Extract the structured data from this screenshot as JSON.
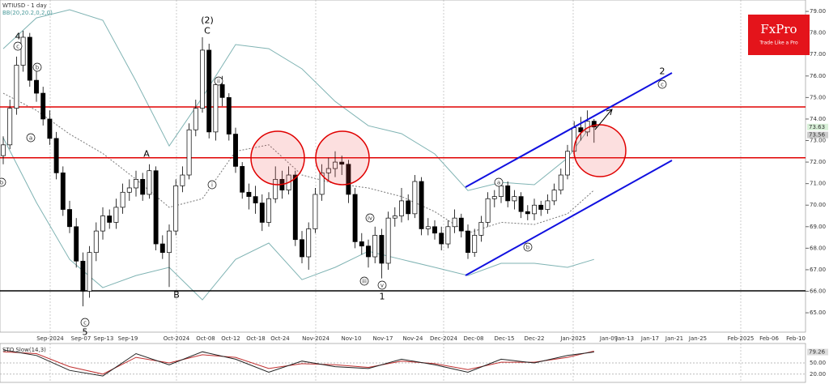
{
  "header": {
    "title": "WTIUSD - 1 day",
    "indicator": "BB(20,20.2,0,2,0)"
  },
  "logo": {
    "name": "FxPro",
    "tagline": "Trade Like a Pro"
  },
  "chart_data": {
    "type": "candlestick",
    "ohlc": [
      [
        72.3,
        73.2,
        71.9,
        72.8
      ],
      [
        72.8,
        74.9,
        72.6,
        74.5
      ],
      [
        74.5,
        76.9,
        74.2,
        76.5
      ],
      [
        76.5,
        78.1,
        76.2,
        77.8
      ],
      [
        77.8,
        78.0,
        75.5,
        75.8
      ],
      [
        75.8,
        76.6,
        74.8,
        75.2
      ],
      [
        75.2,
        75.5,
        73.7,
        74.0
      ],
      [
        74.0,
        74.4,
        72.8,
        73.1
      ],
      [
        73.1,
        73.4,
        71.2,
        71.5
      ],
      [
        71.5,
        71.8,
        69.5,
        69.8
      ],
      [
        69.8,
        70.2,
        68.7,
        69.0
      ],
      [
        69.0,
        69.4,
        67.1,
        67.4
      ],
      [
        67.4,
        67.8,
        65.3,
        66.0
      ],
      [
        66.0,
        68.1,
        65.7,
        67.8
      ],
      [
        67.8,
        69.2,
        67.4,
        68.8
      ],
      [
        68.8,
        69.9,
        68.4,
        69.5
      ],
      [
        69.5,
        69.8,
        68.9,
        69.2
      ],
      [
        69.2,
        70.3,
        68.9,
        69.9
      ],
      [
        69.9,
        71.0,
        69.6,
        70.6
      ],
      [
        70.6,
        71.2,
        70.2,
        70.8
      ],
      [
        70.8,
        71.6,
        70.4,
        71.2
      ],
      [
        71.2,
        71.5,
        70.2,
        70.5
      ],
      [
        70.5,
        71.9,
        70.3,
        71.6
      ],
      [
        71.6,
        71.8,
        67.9,
        68.2
      ],
      [
        68.2,
        68.6,
        67.5,
        67.8
      ],
      [
        67.8,
        69.1,
        66.2,
        68.8
      ],
      [
        68.8,
        71.2,
        68.6,
        70.9
      ],
      [
        70.9,
        71.8,
        70.6,
        71.4
      ],
      [
        71.4,
        73.8,
        71.2,
        73.5
      ],
      [
        73.5,
        74.9,
        73.2,
        74.5
      ],
      [
        74.5,
        77.8,
        74.3,
        77.2
      ],
      [
        77.2,
        77.5,
        73.1,
        73.4
      ],
      [
        73.4,
        75.9,
        73.0,
        75.6
      ],
      [
        75.6,
        76.0,
        74.6,
        75.0
      ],
      [
        75.0,
        75.2,
        73.0,
        73.3
      ],
      [
        73.3,
        73.6,
        71.5,
        71.8
      ],
      [
        71.8,
        72.0,
        70.3,
        70.6
      ],
      [
        70.6,
        71.0,
        69.8,
        70.4
      ],
      [
        70.4,
        70.9,
        69.6,
        70.1
      ],
      [
        70.1,
        70.5,
        68.8,
        69.2
      ],
      [
        69.2,
        70.6,
        69.0,
        70.3
      ],
      [
        70.3,
        71.8,
        70.1,
        71.2
      ],
      [
        71.2,
        71.6,
        70.3,
        70.7
      ],
      [
        70.7,
        71.8,
        70.5,
        71.4
      ],
      [
        71.4,
        71.6,
        68.1,
        68.4
      ],
      [
        68.4,
        68.8,
        67.3,
        67.6
      ],
      [
        67.6,
        69.2,
        67.0,
        68.9
      ],
      [
        68.9,
        70.8,
        68.7,
        70.5
      ],
      [
        70.5,
        71.9,
        70.2,
        71.5
      ],
      [
        71.5,
        72.2,
        71.1,
        71.7
      ],
      [
        71.7,
        72.5,
        71.3,
        72.0
      ],
      [
        72.0,
        72.3,
        71.4,
        71.9
      ],
      [
        71.9,
        72.1,
        70.1,
        70.5
      ],
      [
        70.5,
        70.8,
        68.0,
        68.3
      ],
      [
        68.3,
        68.7,
        67.7,
        68.1
      ],
      [
        68.1,
        68.4,
        67.1,
        67.6
      ],
      [
        67.6,
        69.0,
        67.3,
        68.6
      ],
      [
        68.6,
        68.9,
        66.6,
        67.3
      ],
      [
        67.3,
        69.7,
        67.0,
        69.4
      ],
      [
        69.4,
        69.9,
        69.0,
        69.5
      ],
      [
        69.5,
        70.8,
        69.2,
        70.2
      ],
      [
        70.2,
        70.5,
        69.3,
        69.6
      ],
      [
        69.6,
        71.4,
        69.4,
        71.1
      ],
      [
        71.1,
        71.3,
        68.6,
        68.9
      ],
      [
        68.9,
        69.4,
        68.6,
        69.0
      ],
      [
        69.0,
        69.3,
        68.4,
        68.7
      ],
      [
        68.7,
        69.0,
        67.9,
        68.2
      ],
      [
        68.2,
        69.3,
        68.0,
        69.0
      ],
      [
        69.0,
        69.8,
        68.7,
        69.4
      ],
      [
        69.4,
        69.6,
        68.5,
        68.8
      ],
      [
        68.8,
        69.1,
        67.5,
        67.8
      ],
      [
        67.8,
        68.9,
        67.6,
        68.6
      ],
      [
        68.6,
        69.5,
        68.3,
        69.2
      ],
      [
        69.2,
        70.6,
        69.0,
        70.3
      ],
      [
        70.3,
        70.7,
        69.9,
        70.4
      ],
      [
        70.4,
        71.2,
        70.1,
        70.9
      ],
      [
        70.9,
        71.1,
        69.9,
        70.2
      ],
      [
        70.2,
        70.7,
        69.8,
        70.4
      ],
      [
        70.4,
        70.6,
        69.4,
        69.7
      ],
      [
        69.7,
        70.0,
        69.3,
        69.6
      ],
      [
        69.6,
        70.3,
        69.3,
        70.0
      ],
      [
        70.0,
        70.2,
        69.5,
        69.8
      ],
      [
        69.8,
        70.5,
        69.6,
        70.2
      ],
      [
        70.2,
        71.0,
        70.0,
        70.7
      ],
      [
        70.7,
        71.7,
        70.5,
        71.4
      ],
      [
        71.4,
        72.8,
        71.2,
        72.5
      ],
      [
        72.5,
        73.9,
        72.3,
        73.6
      ],
      [
        73.6,
        74.1,
        73.0,
        73.4
      ],
      [
        73.4,
        74.4,
        73.2,
        73.9
      ],
      [
        73.9,
        74.0,
        72.9,
        73.63
      ]
    ],
    "ylim": [
      64.1,
      79.53
    ],
    "yticks": [
      {
        "value": 65,
        "label": "65.00"
      },
      {
        "value": 66,
        "label": "66.00"
      },
      {
        "value": 67,
        "label": "67.00"
      },
      {
        "value": 68,
        "label": "68.00"
      },
      {
        "value": 69,
        "label": "69.00"
      },
      {
        "value": 70,
        "label": "70.00"
      },
      {
        "value": 71,
        "label": "71.00"
      },
      {
        "value": 72,
        "label": "72.00"
      },
      {
        "value": 73,
        "label": "73.00"
      },
      {
        "value": 74,
        "label": "74.00"
      },
      {
        "value": 75,
        "label": "75.00"
      },
      {
        "value": 76,
        "label": "76.00"
      },
      {
        "value": 77,
        "label": "77.00"
      },
      {
        "value": 78,
        "label": "78.00"
      },
      {
        "value": 79,
        "label": "79.00"
      }
    ],
    "x_labels": [
      "Sep-2024",
      "Sep-07",
      "Sep-13",
      "Sep-19",
      "Oct-2024",
      "Oct-08",
      "Oct-12",
      "Oct-18",
      "Oct-24",
      "Nov-2024",
      "Nov-10",
      "Nov-17",
      "Nov-24",
      "Dec-2024",
      "Dec-08",
      "Dec-15",
      "Dec-22",
      "Jan-2025",
      "Jan-09",
      "Jan-13",
      "Jan-17",
      "Jan-21",
      "Jan-25",
      "Feb-2025",
      "Feb-06",
      "Feb-10"
    ],
    "bands": {
      "color": "#7fb3b3",
      "index": [
        0,
        5,
        10,
        15,
        20,
        25,
        30,
        35,
        40,
        45,
        50,
        55,
        60,
        65,
        70,
        75,
        80,
        85,
        89
      ],
      "upper": [
        77.27,
        78.7,
        79.08,
        78.59,
        75.76,
        72.75,
        75.01,
        77.46,
        77.27,
        76.33,
        74.82,
        73.69,
        73.32,
        72.38,
        70.68,
        71.06,
        70.95,
        72.19,
        73.88
      ],
      "middle": [
        75.2,
        74.4,
        73.3,
        72.4,
        71.2,
        69.9,
        70.3,
        72.5,
        72.8,
        71.4,
        71.0,
        70.8,
        70.4,
        69.7,
        68.7,
        69.2,
        69.1,
        69.6,
        70.7
      ],
      "lower": [
        73.13,
        70.12,
        67.48,
        66.17,
        66.73,
        67.11,
        65.6,
        67.48,
        68.24,
        66.54,
        67.11,
        67.86,
        67.48,
        67.11,
        66.73,
        67.3,
        67.3,
        67.11,
        67.48
      ]
    },
    "levels": [
      {
        "value": 74.56,
        "color": "#e00000"
      },
      {
        "value": 72.2,
        "color": "#e00000"
      },
      {
        "value": 66.02,
        "color": "#000000"
      }
    ],
    "price_tags": [
      73.63,
      73.56
    ],
    "wave_labels": [
      "4",
      "c",
      "b",
      "a",
      "b",
      "A",
      "B",
      "c",
      "5",
      "(2)",
      "C",
      "ii",
      "i",
      "iv",
      "iii",
      "v",
      "1",
      "a",
      "b",
      "2",
      "c"
    ],
    "stochastic": {
      "title": "STO Slow(14,3)",
      "index": [
        0,
        5,
        10,
        15,
        20,
        25,
        30,
        35,
        40,
        45,
        50,
        55,
        60,
        65,
        70,
        75,
        80,
        85,
        89
      ],
      "k": [
        85,
        70,
        30,
        15,
        75,
        45,
        80,
        60,
        25,
        55,
        40,
        35,
        60,
        45,
        25,
        60,
        50,
        70,
        79.26
      ],
      "d": [
        80,
        75,
        40,
        20,
        65,
        50,
        72,
        65,
        35,
        48,
        45,
        38,
        55,
        48,
        32,
        52,
        52,
        65,
        82
      ],
      "ylim": [
        0,
        100
      ],
      "yticks": [
        {
          "value": 50,
          "label": "50.00"
        },
        {
          "value": 20,
          "label": "20.00"
        }
      ]
    }
  }
}
